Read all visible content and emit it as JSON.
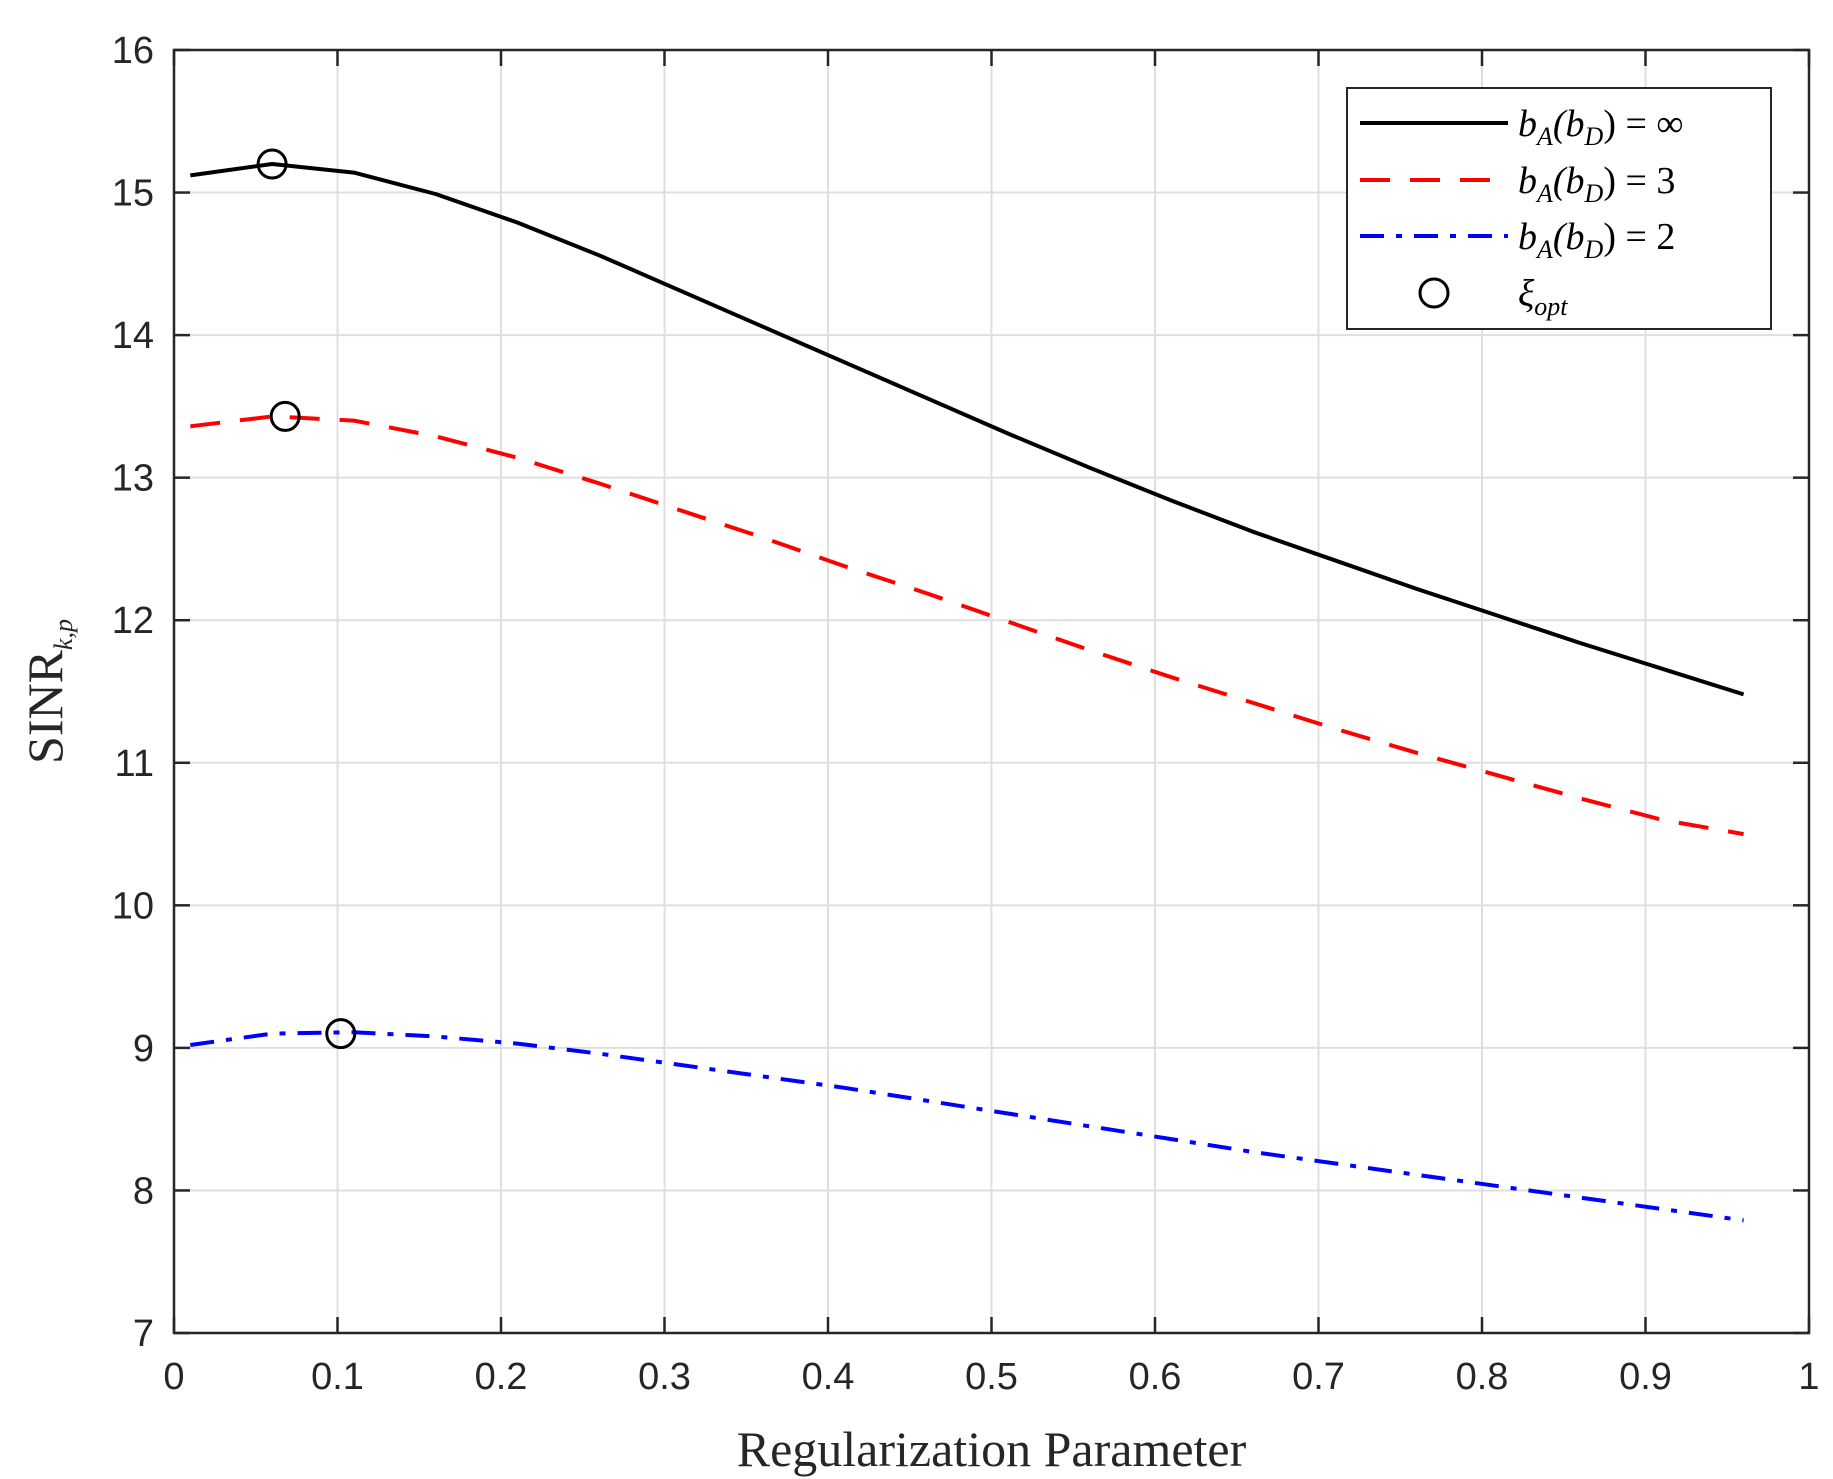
{
  "chart_data": {
    "type": "line",
    "title": "",
    "xlabel": "Regularization Parameter",
    "ylabel": {
      "main": "SINR",
      "sub": "k,p"
    },
    "xlim": [
      0,
      1
    ],
    "ylim": [
      7,
      16
    ],
    "xticks": [
      0,
      0.1,
      0.2,
      0.3,
      0.4,
      0.5,
      0.6,
      0.7,
      0.8,
      0.9,
      1
    ],
    "xtick_labels": [
      "0",
      "0.1",
      "0.2",
      "0.3",
      "0.4",
      "0.5",
      "0.6",
      "0.7",
      "0.8",
      "0.9",
      "1"
    ],
    "yticks": [
      7,
      8,
      9,
      10,
      11,
      12,
      13,
      14,
      15,
      16
    ],
    "ytick_labels": [
      "7",
      "8",
      "9",
      "10",
      "11",
      "12",
      "13",
      "14",
      "15",
      "16"
    ],
    "grid": true,
    "legend_position": "top-right",
    "series": [
      {
        "name": "b_A(b_D) = ∞",
        "legend": {
          "base": "b",
          "sub1": "A",
          "mid": "(b",
          "sub2": "D",
          "tail": ") = ∞"
        },
        "color": "#000000",
        "style": "solid",
        "x": [
          0.01,
          0.06,
          0.11,
          0.16,
          0.21,
          0.26,
          0.31,
          0.36,
          0.41,
          0.46,
          0.51,
          0.56,
          0.61,
          0.66,
          0.71,
          0.76,
          0.81,
          0.86,
          0.91,
          0.96
        ],
        "y": [
          15.12,
          15.2,
          15.14,
          14.99,
          14.79,
          14.56,
          14.31,
          14.06,
          13.81,
          13.56,
          13.31,
          13.07,
          12.84,
          12.62,
          12.42,
          12.22,
          12.03,
          11.84,
          11.66,
          11.48
        ]
      },
      {
        "name": "b_A(b_D) = 3",
        "legend": {
          "base": "b",
          "sub1": "A",
          "mid": "(b",
          "sub2": "D",
          "tail": ") = 3"
        },
        "color": "#ff0000",
        "style": "dashed",
        "x": [
          0.01,
          0.06,
          0.11,
          0.16,
          0.21,
          0.26,
          0.31,
          0.36,
          0.41,
          0.46,
          0.51,
          0.56,
          0.61,
          0.66,
          0.71,
          0.76,
          0.81,
          0.86,
          0.91,
          0.96
        ],
        "y": [
          13.36,
          13.43,
          13.4,
          13.29,
          13.14,
          12.96,
          12.77,
          12.58,
          12.38,
          12.19,
          11.99,
          11.79,
          11.6,
          11.42,
          11.24,
          11.07,
          10.91,
          10.75,
          10.6,
          10.5
        ]
      },
      {
        "name": "b_A(b_D) = 2",
        "legend": {
          "base": "b",
          "sub1": "A",
          "mid": "(b",
          "sub2": "D",
          "tail": ") = 2"
        },
        "color": "#0000ff",
        "style": "dashdot",
        "x": [
          0.01,
          0.06,
          0.11,
          0.16,
          0.21,
          0.26,
          0.31,
          0.36,
          0.41,
          0.46,
          0.51,
          0.56,
          0.61,
          0.66,
          0.71,
          0.76,
          0.81,
          0.86,
          0.91,
          0.96
        ],
        "y": [
          9.02,
          9.1,
          9.11,
          9.08,
          9.03,
          8.96,
          8.88,
          8.8,
          8.72,
          8.63,
          8.54,
          8.45,
          8.36,
          8.27,
          8.19,
          8.11,
          8.03,
          7.95,
          7.87,
          7.79
        ]
      }
    ],
    "markers": {
      "name": "ξ_opt",
      "legend": {
        "base": "ξ",
        "sub": "opt"
      },
      "shape": "circle",
      "color": "#000000",
      "points": [
        {
          "x": 0.06,
          "y": 15.2
        },
        {
          "x": 0.068,
          "y": 13.43
        },
        {
          "x": 0.102,
          "y": 9.1
        }
      ]
    }
  }
}
